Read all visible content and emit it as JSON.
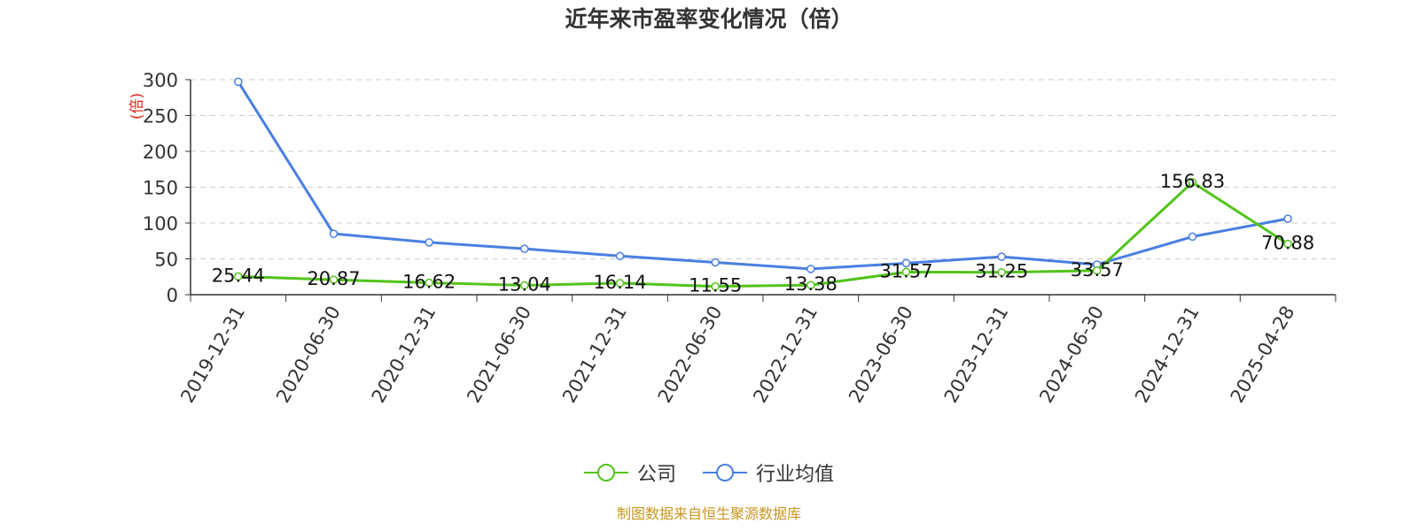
{
  "chart_data": {
    "type": "line",
    "title": "近年来市盈率变化情况（倍）",
    "ylabel": "(倍)",
    "xlabel": "",
    "categories": [
      "2019-12-31",
      "2020-06-30",
      "2020-12-31",
      "2021-06-30",
      "2021-12-31",
      "2022-06-30",
      "2022-12-31",
      "2023-06-30",
      "2023-12-31",
      "2024-06-30",
      "2024-12-31",
      "2025-04-28"
    ],
    "ylim": [
      0,
      300
    ],
    "yticks": [
      0,
      50,
      100,
      150,
      200,
      250,
      300
    ],
    "grid": true,
    "legend_position": "bottom-center",
    "series": [
      {
        "name": "公司",
        "color": "#52c41a",
        "values": [
          25.44,
          20.87,
          16.62,
          13.04,
          16.14,
          11.55,
          13.38,
          31.57,
          31.25,
          33.57,
          156.83,
          70.88
        ],
        "labels": [
          "25.44",
          "20.87",
          "16.62",
          "13.04",
          "16.14",
          "11.55",
          "13.38",
          "31.57",
          "31.25",
          "33.57",
          "156.83",
          "70.88"
        ]
      },
      {
        "name": "行业均值",
        "color": "#4a7fe0",
        "values": [
          297,
          85,
          73,
          64,
          54,
          45,
          36,
          44,
          53,
          42,
          81,
          106
        ]
      }
    ]
  },
  "source_note": "制图数据来自恒生聚源数据库"
}
